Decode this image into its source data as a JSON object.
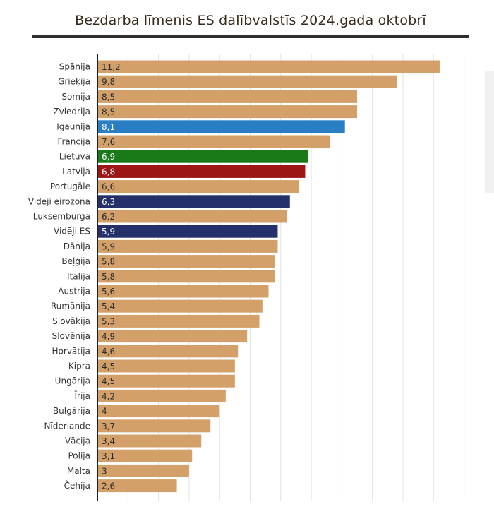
{
  "chart_data": {
    "type": "bar",
    "orientation": "horizontal",
    "title": "Bezdarba līmenis ES dalībvalstīs 2024.gada oktobrī",
    "xlim": [
      0,
      12
    ],
    "grid": true,
    "categories": [
      "Spānija",
      "Grieķija",
      "Somija",
      "Zviedrija",
      "Igaunija",
      "Francija",
      "Lietuva",
      "Latvija",
      "Portugāle",
      "Vidēji eirozonā",
      "Luksemburga",
      "Vidēji ES",
      "Dānija",
      "Beļģija",
      "Itālija",
      "Austrija",
      "Rumānija",
      "Slovākija",
      "Slovēnija",
      "Horvātija",
      "Kipra",
      "Ungārija",
      "Īrija",
      "Bulgārija",
      "Nīderlande",
      "Vācija",
      "Polija",
      "Malta",
      "Čehija"
    ],
    "values": [
      11.2,
      9.8,
      8.5,
      8.5,
      8.1,
      7.6,
      6.9,
      6.8,
      6.6,
      6.3,
      6.2,
      5.9,
      5.9,
      5.8,
      5.8,
      5.6,
      5.4,
      5.3,
      4.9,
      4.6,
      4.5,
      4.5,
      4.2,
      4,
      3.7,
      3.4,
      3.1,
      3,
      2.6
    ],
    "value_labels": [
      "11,2",
      "9,8",
      "8,5",
      "8,5",
      "8,1",
      "7,6",
      "6,9",
      "6,8",
      "6,6",
      "6,3",
      "6,2",
      "5,9",
      "5,9",
      "5,8",
      "5,8",
      "5,6",
      "5,4",
      "5,3",
      "4,9",
      "4,6",
      "4,5",
      "4,5",
      "4,2",
      "4",
      "3,7",
      "3,4",
      "3,1",
      "3",
      "2,6"
    ],
    "colors": [
      "#d4a06a",
      "#d4a06a",
      "#d4a06a",
      "#d4a06a",
      "#2a7fc4",
      "#d4a06a",
      "#1a7a18",
      "#9c1616",
      "#d4a06a",
      "#24306a",
      "#d4a06a",
      "#24306a",
      "#d4a06a",
      "#d4a06a",
      "#d4a06a",
      "#d4a06a",
      "#d4a06a",
      "#d4a06a",
      "#d4a06a",
      "#d4a06a",
      "#d4a06a",
      "#d4a06a",
      "#d4a06a",
      "#d4a06a",
      "#d4a06a",
      "#d4a06a",
      "#d4a06a",
      "#d4a06a",
      "#d4a06a"
    ],
    "label_colors": [
      "#2b2b2b",
      "#2b2b2b",
      "#2b2b2b",
      "#2b2b2b",
      "#ffffff",
      "#2b2b2b",
      "#ffffff",
      "#ffffff",
      "#2b2b2b",
      "#ffffff",
      "#2b2b2b",
      "#ffffff",
      "#2b2b2b",
      "#2b2b2b",
      "#2b2b2b",
      "#2b2b2b",
      "#2b2b2b",
      "#2b2b2b",
      "#2b2b2b",
      "#2b2b2b",
      "#2b2b2b",
      "#2b2b2b",
      "#2b2b2b",
      "#2b2b2b",
      "#2b2b2b",
      "#2b2b2b",
      "#2b2b2b",
      "#2b2b2b",
      "#2b2b2b"
    ]
  }
}
